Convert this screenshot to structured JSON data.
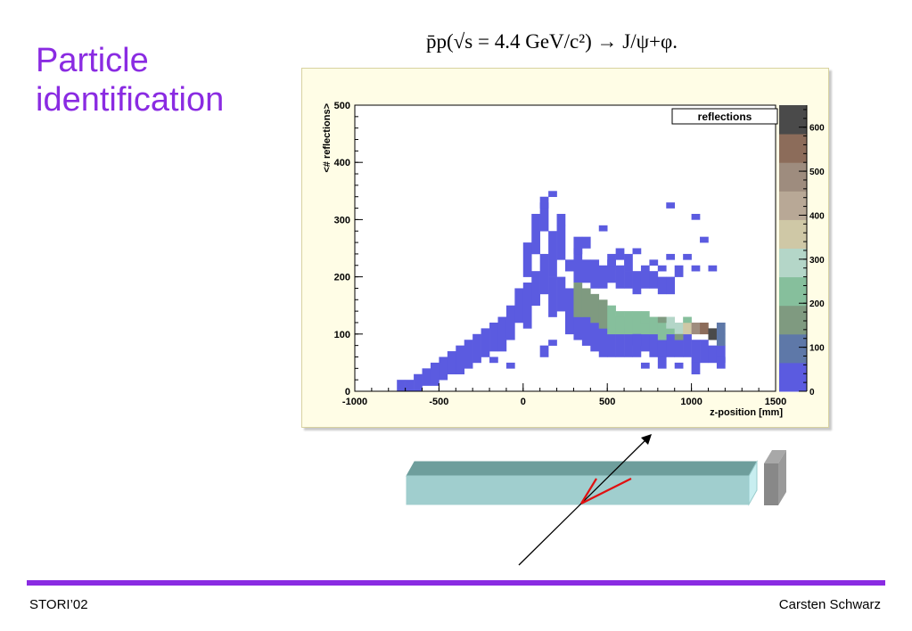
{
  "slide": {
    "title": "Particle identification",
    "formula": "p̄p(√s = 4.4 GeV/c²) → J/ψ+φ."
  },
  "footer": {
    "left": "STORI’02",
    "right": "Carsten Schwarz",
    "bar_color": "#8a2be2"
  },
  "chart_data": {
    "type": "heatmap",
    "title": "reflections",
    "xlabel": "z-position [mm]",
    "ylabel": "<# reflections>",
    "xlim": [
      -1000,
      1500
    ],
    "ylim": [
      0,
      500
    ],
    "x_ticks": [
      -1000,
      -500,
      0,
      500,
      1000,
      1500
    ],
    "y_ticks": [
      0,
      100,
      200,
      300,
      400,
      500
    ],
    "colorbar_ticks": [
      0,
      100,
      200,
      300,
      400,
      500,
      600
    ],
    "colorbar_range": [
      0,
      650
    ],
    "palette": [
      "#5b5be0",
      "#5e78a8",
      "#7f9a80",
      "#86bf9c",
      "#b4d6c8",
      "#cfc8a6",
      "#b8a896",
      "#9e8c7e",
      "#8c6c5a",
      "#4a4a4a"
    ],
    "bin_width": 50,
    "bin_height": 10,
    "cells": [
      [
        -750,
        0,
        20
      ],
      [
        -700,
        0,
        20
      ],
      [
        -650,
        0,
        30
      ],
      [
        -600,
        10,
        30
      ],
      [
        -550,
        10,
        40
      ],
      [
        -500,
        20,
        40
      ],
      [
        -450,
        30,
        40
      ],
      [
        -400,
        30,
        50
      ],
      [
        -350,
        40,
        50
      ],
      [
        -300,
        50,
        50
      ],
      [
        -250,
        60,
        50
      ],
      [
        -200,
        70,
        50
      ],
      [
        -150,
        70,
        60
      ],
      [
        -100,
        90,
        60
      ],
      [
        -50,
        120,
        60
      ],
      [
        0,
        110,
        80
      ],
      [
        0,
        200,
        60
      ],
      [
        50,
        150,
        60
      ],
      [
        50,
        240,
        70
      ],
      [
        100,
        170,
        70
      ],
      [
        100,
        280,
        50
      ],
      [
        150,
        130,
        70
      ],
      [
        150,
        200,
        80
      ],
      [
        200,
        140,
        60
      ],
      [
        200,
        230,
        60
      ],
      [
        250,
        100,
        80
      ],
      [
        300,
        90,
        80
      ],
      [
        350,
        80,
        80
      ],
      [
        400,
        70,
        80
      ],
      [
        450,
        60,
        80
      ],
      [
        500,
        60,
        70
      ],
      [
        550,
        60,
        70
      ],
      [
        600,
        60,
        70
      ],
      [
        650,
        60,
        70
      ],
      [
        700,
        70,
        60
      ],
      [
        750,
        60,
        60
      ],
      [
        800,
        60,
        50
      ],
      [
        850,
        60,
        50
      ],
      [
        900,
        60,
        40
      ],
      [
        950,
        60,
        40
      ],
      [
        1000,
        50,
        40
      ],
      [
        1050,
        50,
        40
      ],
      [
        1100,
        50,
        30
      ],
      [
        1150,
        50,
        30
      ],
      [
        300,
        190,
        60
      ],
      [
        350,
        190,
        40
      ],
      [
        400,
        180,
        50
      ],
      [
        450,
        180,
        40
      ],
      [
        500,
        190,
        40
      ],
      [
        550,
        180,
        40
      ],
      [
        600,
        180,
        30
      ],
      [
        650,
        170,
        40
      ],
      [
        700,
        180,
        30
      ],
      [
        750,
        180,
        30
      ],
      [
        800,
        170,
        30
      ],
      [
        850,
        170,
        30
      ],
      [
        300,
        130,
        60,
        150
      ],
      [
        350,
        130,
        50,
        150
      ],
      [
        400,
        120,
        50,
        150
      ],
      [
        450,
        110,
        50,
        150
      ],
      [
        500,
        100,
        50,
        200
      ],
      [
        550,
        100,
        40,
        200
      ],
      [
        600,
        100,
        40,
        220
      ],
      [
        650,
        100,
        40,
        220
      ],
      [
        700,
        100,
        30,
        230
      ],
      [
        750,
        100,
        30,
        230
      ],
      [
        800,
        90,
        30,
        250
      ],
      [
        850,
        100,
        20,
        250
      ],
      [
        900,
        100,
        20,
        300
      ],
      [
        950,
        100,
        20,
        380
      ],
      [
        1000,
        100,
        20,
        480
      ],
      [
        1050,
        100,
        20,
        550
      ],
      [
        1100,
        90,
        20,
        650
      ],
      [
        550,
        110,
        20,
        240
      ],
      [
        700,
        120,
        20,
        200
      ],
      [
        850,
        110,
        20,
        300
      ],
      [
        950,
        120,
        10,
        240
      ],
      [
        1150,
        100,
        20,
        120
      ],
      [
        1150,
        80,
        20,
        100
      ],
      [
        -100,
        40,
        10
      ],
      [
        -200,
        50,
        10
      ],
      [
        100,
        60,
        20
      ],
      [
        150,
        80,
        10
      ],
      [
        250,
        210,
        20
      ],
      [
        300,
        240,
        30
      ],
      [
        350,
        250,
        20
      ],
      [
        450,
        280,
        10
      ],
      [
        500,
        220,
        20
      ],
      [
        550,
        230,
        20
      ],
      [
        600,
        210,
        30
      ],
      [
        650,
        240,
        10
      ],
      [
        700,
        200,
        20
      ],
      [
        750,
        220,
        10
      ],
      [
        800,
        210,
        10
      ],
      [
        850,
        230,
        10
      ],
      [
        900,
        200,
        20
      ],
      [
        950,
        230,
        10
      ],
      [
        1000,
        210,
        10
      ],
      [
        1050,
        260,
        10
      ],
      [
        1100,
        210,
        10
      ],
      [
        1000,
        300,
        10
      ],
      [
        850,
        320,
        10
      ],
      [
        150,
        340,
        10
      ],
      [
        200,
        290,
        20
      ],
      [
        100,
        320,
        20
      ],
      [
        800,
        120,
        10,
        150
      ],
      [
        900,
        90,
        10,
        150
      ],
      [
        650,
        80,
        20
      ],
      [
        700,
        40,
        10
      ],
      [
        800,
        40,
        20
      ],
      [
        900,
        40,
        10
      ],
      [
        1000,
        30,
        20
      ],
      [
        1150,
        40,
        20
      ]
    ]
  }
}
